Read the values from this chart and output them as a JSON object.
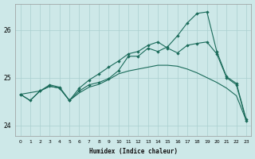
{
  "xlabel": "Humidex (Indice chaleur)",
  "background_color": "#cde8e8",
  "grid_color": "#aacfcf",
  "line_color": "#1a6b5a",
  "xlim": [
    -0.5,
    23.5
  ],
  "ylim": [
    23.78,
    26.55
  ],
  "yticks": [
    24,
    25,
    26
  ],
  "line1_x": [
    0,
    1,
    2,
    3,
    4,
    5,
    6,
    7,
    8,
    9,
    10,
    11,
    12,
    13,
    14,
    15,
    16,
    17,
    18,
    19,
    20,
    21,
    22,
    23
  ],
  "line1_y": [
    24.65,
    24.52,
    24.72,
    24.82,
    24.78,
    24.52,
    24.68,
    24.8,
    24.86,
    24.96,
    25.08,
    25.14,
    25.18,
    25.22,
    25.26,
    25.26,
    25.24,
    25.18,
    25.1,
    25.0,
    24.9,
    24.78,
    24.62,
    24.1
  ],
  "line2_x": [
    0,
    1,
    2,
    3,
    4,
    5,
    6,
    7,
    8,
    9,
    10,
    11,
    12,
    13,
    14,
    15,
    16,
    17,
    18,
    19,
    20,
    21,
    22,
    23
  ],
  "line2_y": [
    24.65,
    24.52,
    24.72,
    24.85,
    24.8,
    24.52,
    24.78,
    24.95,
    25.08,
    25.22,
    25.35,
    25.5,
    25.55,
    25.68,
    25.75,
    25.62,
    25.52,
    25.68,
    25.72,
    25.75,
    25.5,
    25.0,
    24.85,
    24.1
  ],
  "line3_x": [
    0,
    2,
    3,
    4,
    5,
    6,
    7,
    8,
    9,
    10,
    11,
    12,
    13,
    14,
    15,
    16,
    17,
    18,
    19,
    20,
    21,
    22,
    23
  ],
  "line3_y": [
    24.65,
    24.72,
    24.82,
    24.78,
    24.52,
    24.72,
    24.85,
    24.9,
    24.98,
    25.15,
    25.45,
    25.45,
    25.62,
    25.55,
    25.65,
    25.88,
    26.15,
    26.35,
    26.38,
    25.55,
    25.02,
    24.88,
    24.12
  ]
}
